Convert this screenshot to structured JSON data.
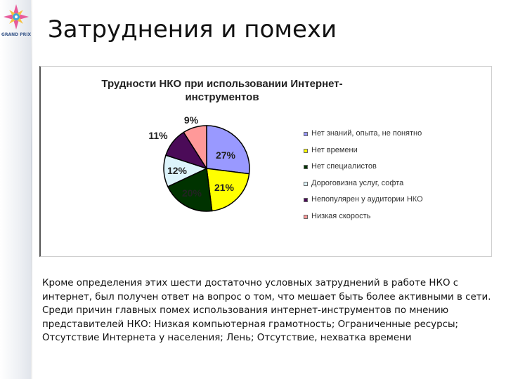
{
  "slide": {
    "title": "Затруднения и помехи",
    "logo": {
      "text": "GRAND PRIX"
    },
    "body_text": "Кроме определения этих шести достаточно условных затруднений в работе НКО с интернет, был получен ответ на вопрос о том, что мешает быть более активными в сети. Среди причин  главных помех использования интернет-инструментов по мнению представителей НКО: Низкая компьютерная грамотность; Ограниченные ресурсы; Отсутствие Интернета у населения; Лень; Отсутствие, нехватка времени"
  },
  "chart_data": {
    "type": "pie",
    "title": "Трудности НКО при использовании Интернет-инструментов",
    "categories": [
      "Нет знаний, опыта, не понятно",
      "Нет времени",
      "Нет специалистов",
      "Дороговизна  услуг, софта",
      "Непопулярен у аудитории НКО",
      "Низкая скорость"
    ],
    "values": [
      27,
      21,
      20,
      12,
      11,
      9
    ],
    "labels": [
      "27%",
      "21%",
      "20%",
      "12%",
      "11%",
      "9%"
    ],
    "colors": [
      "#9999ff",
      "#ffff00",
      "#003300",
      "#ddf4fb",
      "#4b0b58",
      "#ff9999"
    ],
    "legend_position": "right"
  }
}
